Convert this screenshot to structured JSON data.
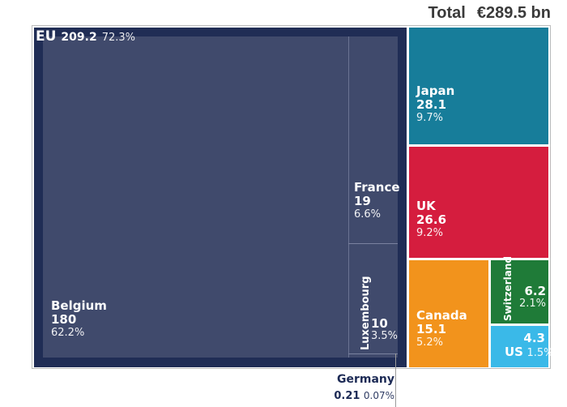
{
  "chart_data": {
    "type": "treemap",
    "title": "Total",
    "total": "€289.5 bn",
    "groups": [
      {
        "name": "EU",
        "value": 209.2,
        "percent": "72.3%",
        "children": [
          {
            "name": "Belgium",
            "value": 180,
            "percent": "62.2%"
          },
          {
            "name": "France",
            "value": 19,
            "percent": "6.6%"
          },
          {
            "name": "Luxembourg",
            "value": 10,
            "percent": "3.5%"
          },
          {
            "name": "Germany",
            "value": 0.21,
            "percent": "0.07%"
          }
        ]
      }
    ],
    "items": [
      {
        "name": "Japan",
        "value": 28.1,
        "percent": "9.7%",
        "color": "#177d9a"
      },
      {
        "name": "UK",
        "value": 26.6,
        "percent": "9.2%",
        "color": "#d51d3e"
      },
      {
        "name": "Canada",
        "value": 15.1,
        "percent": "5.2%",
        "color": "#f2931c"
      },
      {
        "name": "Switzerland",
        "value": 6.2,
        "percent": "2.1%",
        "color": "#1f7b38"
      },
      {
        "name": "US",
        "value": 4.3,
        "percent": "1.5%",
        "color": "#3ab9e8"
      }
    ],
    "eu_color": "#202d55",
    "eu_inner_color": "#404a6c"
  }
}
